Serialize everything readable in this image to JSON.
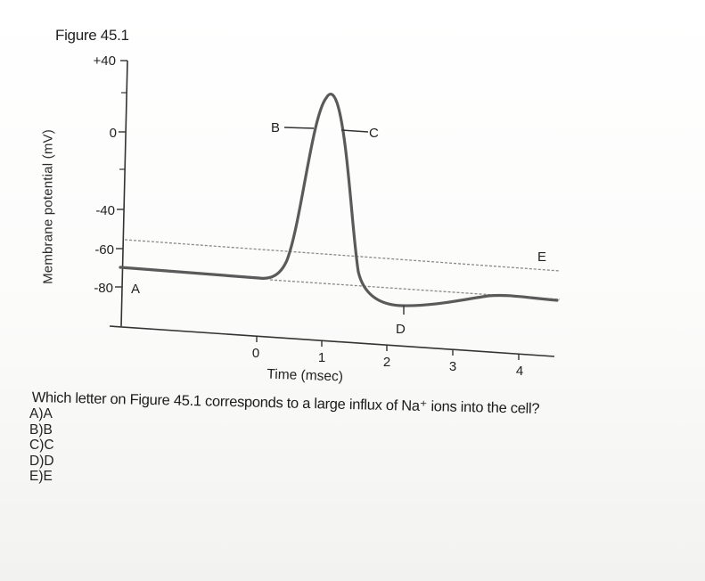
{
  "figure": {
    "title": "Figure 45.1",
    "y_axis_label": "Membrane potential (mV)",
    "x_axis_label": "Time (msec)",
    "y_ticks": [
      "+40",
      "0",
      "-40",
      "-60",
      "-80"
    ],
    "x_ticks": [
      "0",
      "1",
      "2",
      "3",
      "4"
    ],
    "point_labels": [
      "A",
      "B",
      "C",
      "D",
      "E"
    ]
  },
  "question": {
    "text": "Which letter on Figure 45.1 corresponds to a large influx of Na⁺ ions into the cell?",
    "choices": [
      "A)A",
      "B)B",
      "C)C",
      "D)D",
      "E)E"
    ]
  },
  "colors": {
    "curve": "#5a5a5a",
    "axis": "#333333",
    "dashed": "#8a8a8a"
  }
}
